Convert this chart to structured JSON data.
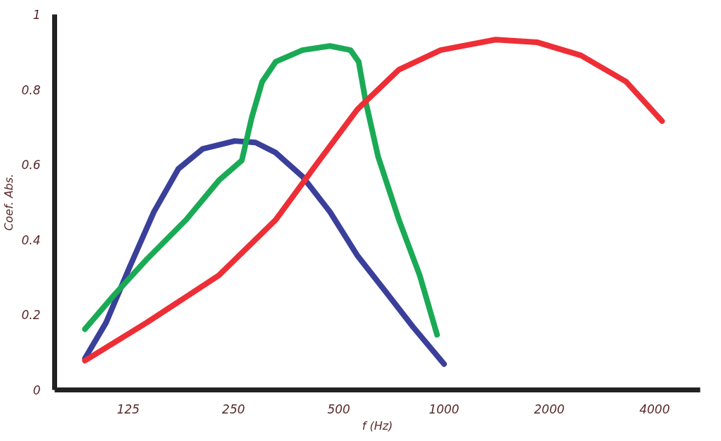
{
  "chart_data": {
    "type": "line",
    "xlabel": "f (Hz)",
    "ylabel": "Coef. Abs.",
    "log": "x",
    "grid": false,
    "marker": "none",
    "line_style": "solid",
    "xlim": [
      77,
      5400
    ],
    "ylim": [
      0,
      1
    ],
    "xticks": [
      125,
      250,
      500,
      1000,
      2000,
      4000
    ],
    "yticks": [
      0,
      0.2,
      0.4,
      0.6,
      0.8,
      1
    ],
    "series": [
      {
        "color": "#3a3f9a",
        "x": [
          94,
          108,
          126,
          148,
          174,
          204,
          252,
          289,
          330,
          394,
          472,
          565,
          679,
          815,
          1000
        ],
        "values": [
          0.084,
          0.179,
          0.326,
          0.474,
          0.589,
          0.642,
          0.663,
          0.659,
          0.632,
          0.568,
          0.474,
          0.358,
          0.263,
          0.168,
          0.069
        ]
      },
      {
        "color": "#1aaa55",
        "x": [
          94,
          114,
          141,
          183,
          227,
          264,
          282,
          302,
          330,
          394,
          472,
          540,
          570,
          597,
          648,
          743,
          852,
          955
        ],
        "values": [
          0.162,
          0.253,
          0.347,
          0.453,
          0.558,
          0.611,
          0.726,
          0.821,
          0.874,
          0.905,
          0.916,
          0.905,
          0.874,
          0.768,
          0.621,
          0.453,
          0.305,
          0.147
        ]
      },
      {
        "color": "#ee2e36",
        "x": [
          94,
          141,
          227,
          330,
          431,
          565,
          743,
          978,
          1404,
          1843,
          2462,
          3315,
          4200
        ],
        "values": [
          0.078,
          0.179,
          0.305,
          0.453,
          0.6,
          0.747,
          0.853,
          0.905,
          0.933,
          0.926,
          0.891,
          0.821,
          0.716
        ]
      }
    ]
  }
}
